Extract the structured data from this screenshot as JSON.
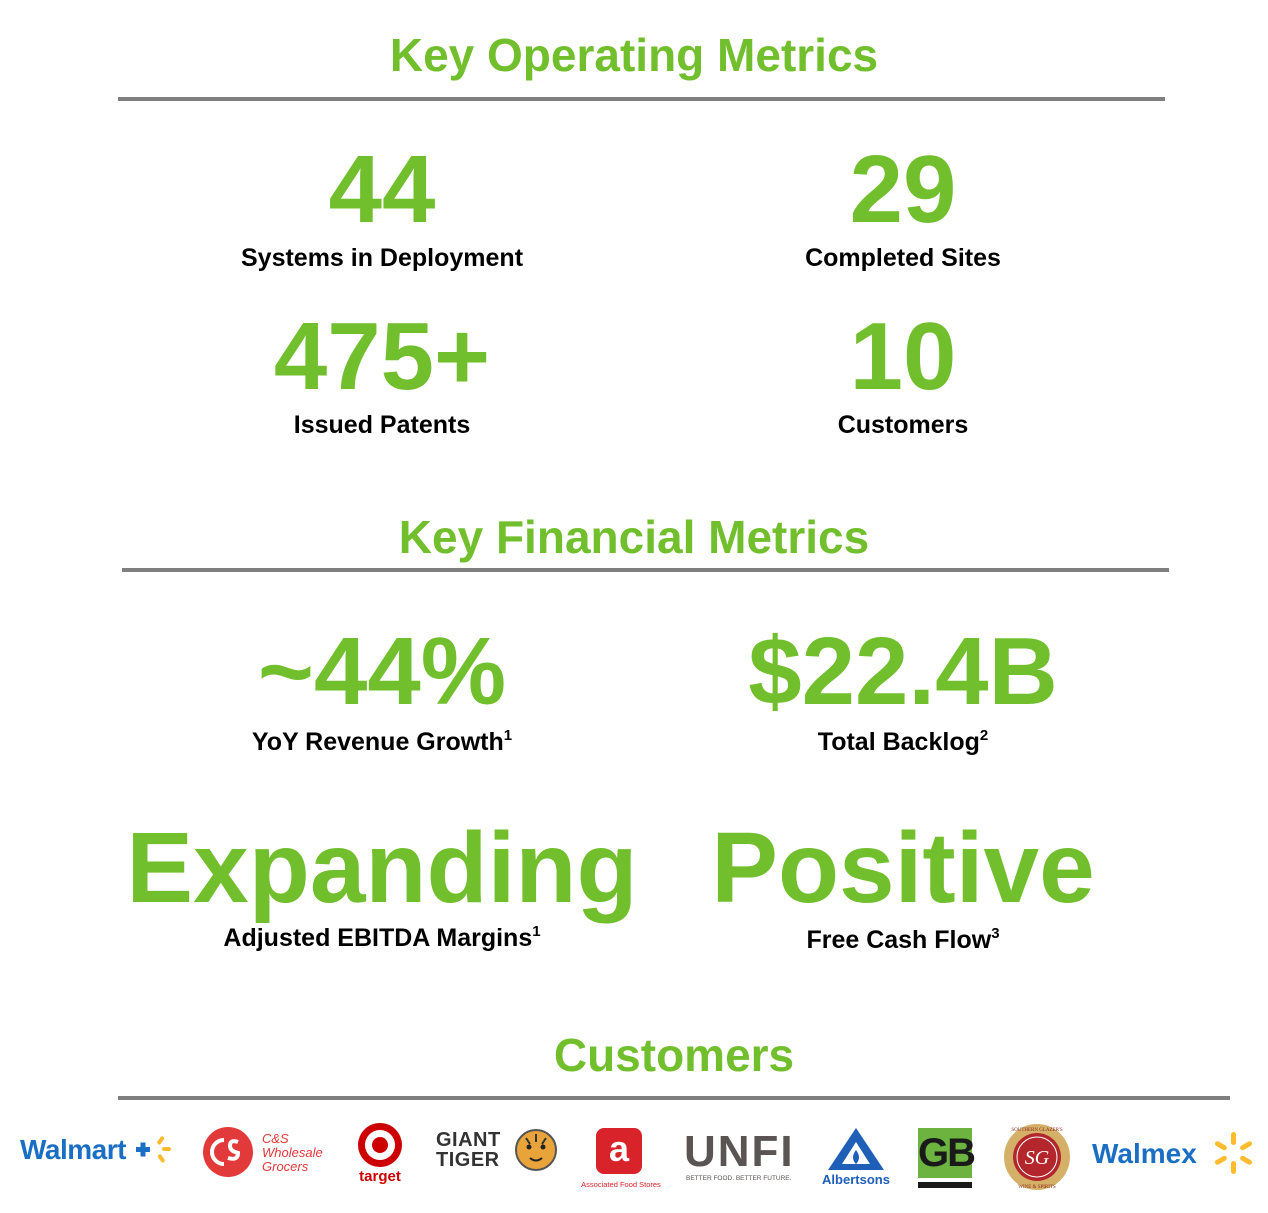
{
  "operating": {
    "title": "Key Operating Metrics",
    "metrics": [
      {
        "value": "44",
        "label": "Systems in Deployment"
      },
      {
        "value": "29",
        "label": "Completed Sites"
      },
      {
        "value": "475+",
        "label": "Issued Patents"
      },
      {
        "value": "10",
        "label": "Customers"
      }
    ]
  },
  "financial": {
    "title": "Key Financial Metrics",
    "metrics": [
      {
        "value": "~44%",
        "label": "YoY Revenue Growth",
        "note": "1"
      },
      {
        "value": "$22.4B",
        "label": "Total Backlog",
        "note": "2"
      },
      {
        "value": "Expanding",
        "label": "Adjusted EBITDA Margins",
        "note": "1"
      },
      {
        "value": "Positive",
        "label": "Free Cash Flow",
        "note": "3"
      }
    ]
  },
  "customers": {
    "title": "Customers",
    "logos": {
      "walmart": "Walmart",
      "cs": [
        "C&S",
        "Wholesale",
        "Grocers"
      ],
      "cs_mark": "CS",
      "target": "target",
      "giant_tiger": [
        "GIANT",
        "TIGER"
      ],
      "associated": "Associated Food Stores",
      "associated_mark": "a",
      "unfi": "UNFI",
      "unfi_tag": "BETTER FOOD. BETTER FUTURE.",
      "albertsons": "Albertsons",
      "gb": "GB",
      "sg_mark": "SG",
      "sg_top": "SOUTHERN GLAZER'S",
      "sg_bottom": "WINE & SPIRITS",
      "walmex": "Walmex"
    }
  },
  "colors": {
    "accent": "#72bf2e",
    "rule": "#7f7f7f"
  }
}
